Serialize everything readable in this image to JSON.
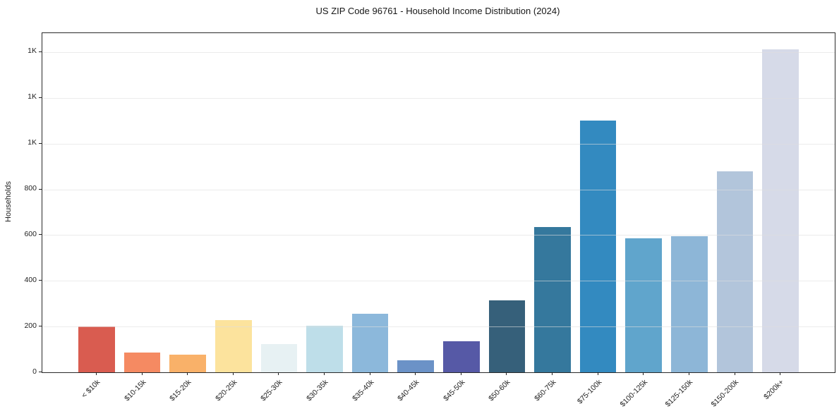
{
  "chart_data": {
    "type": "bar",
    "title": "US ZIP Code 96761 - Household Income Distribution (2024)",
    "xlabel": "",
    "ylabel": "Households",
    "categories": [
      "< $10k",
      "$10-15k",
      "$15-20k",
      "$20-25k",
      "$25-30k",
      "$30-35k",
      "$35-40k",
      "$40-45k",
      "$45-50k",
      "$50-60k",
      "$60-75k",
      "$75-100k",
      "$100-125k",
      "$125-150k",
      "$150-200k",
      "$200k+"
    ],
    "values": [
      202,
      87,
      77,
      229,
      122,
      205,
      255,
      52,
      137,
      314,
      635,
      1101,
      586,
      595,
      878,
      1412
    ],
    "bar_colors": [
      "#d95c50",
      "#f58a62",
      "#f9b169",
      "#fce39d",
      "#e7f1f3",
      "#bedee9",
      "#8cb8db",
      "#6b92c7",
      "#5659a6",
      "#36607a",
      "#35789d",
      "#338ac0",
      "#60a5cc",
      "#8db6d7",
      "#b2c5db",
      "#d6dae8"
    ],
    "yticks": {
      "values": [
        0,
        200,
        400,
        600,
        800,
        1000,
        1200,
        1400
      ],
      "labels": [
        "0",
        "200",
        "400",
        "600",
        "800",
        "1K",
        "1K",
        "1K"
      ]
    },
    "ylim": [
      0,
      1483
    ],
    "xlim": [
      -1.19,
      16.19
    ],
    "bar_width_ratio": 0.8,
    "x_tick_rotation_deg": 45,
    "grid": "horizontal gridlines, light gray, drawn over bars",
    "legend": "none"
  }
}
